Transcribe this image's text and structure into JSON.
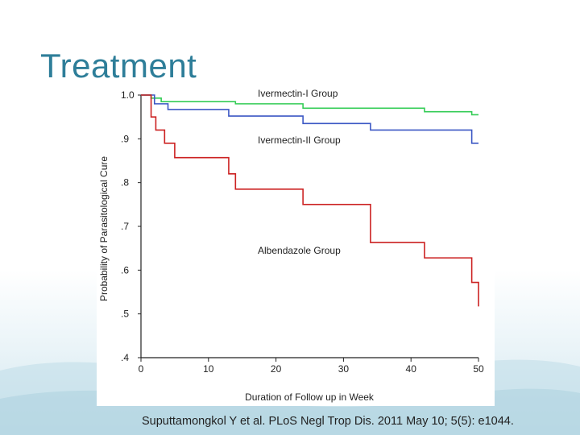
{
  "slide": {
    "title": "Treatment",
    "citation": "Suputtamongkol Y et al. PLoS Negl Trop Dis. 2011 May 10; 5(5): e1044."
  },
  "chart_data": {
    "type": "line",
    "step": true,
    "title": "",
    "xlabel": "Duration of Follow up in Week",
    "ylabel": "Probability of Parasitological Cure",
    "xlim": [
      0,
      50
    ],
    "ylim": [
      0.4,
      1.0
    ],
    "x_ticks": [
      0,
      10,
      20,
      30,
      40,
      50
    ],
    "x_tick_labels": [
      "0",
      "10",
      "20",
      "30",
      "40",
      "50"
    ],
    "y_ticks": [
      0.4,
      0.5,
      0.6,
      0.7,
      0.8,
      0.9,
      1.0
    ],
    "y_tick_labels": [
      ".4",
      ".5",
      ".6",
      ".7",
      ".8",
      ".9",
      "1.0"
    ],
    "series": [
      {
        "name": "Ivermectin-I Group",
        "color": "#33cc55",
        "x": [
          0,
          1.5,
          3,
          14,
          24,
          42,
          49,
          50
        ],
        "y": [
          1.0,
          0.993,
          0.985,
          0.98,
          0.97,
          0.962,
          0.955,
          0.955
        ]
      },
      {
        "name": "Ivermectin-II Group",
        "color": "#3b57c4",
        "x": [
          0,
          2,
          4,
          13,
          24,
          34,
          49,
          50
        ],
        "y": [
          1.0,
          0.98,
          0.967,
          0.952,
          0.935,
          0.92,
          0.89,
          0.89
        ]
      },
      {
        "name": "Albendazole Group",
        "color": "#cc2222",
        "x": [
          0,
          1.5,
          2.2,
          3.5,
          5,
          13,
          14,
          24,
          34,
          42,
          49,
          50
        ],
        "y": [
          1.0,
          0.95,
          0.92,
          0.89,
          0.857,
          0.82,
          0.785,
          0.75,
          0.663,
          0.628,
          0.572,
          0.517
        ]
      }
    ]
  }
}
